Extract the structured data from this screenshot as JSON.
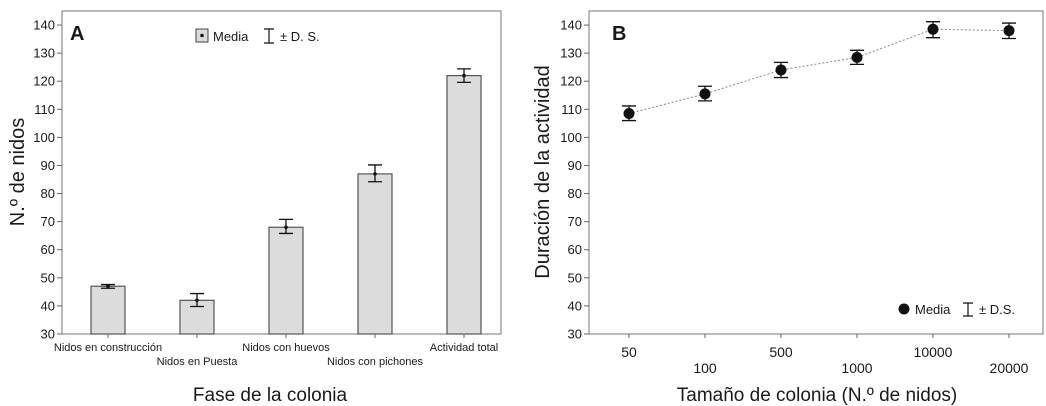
{
  "chart_data": [
    {
      "panel": "A",
      "type": "bar",
      "xlabel": "Fase de la colonia",
      "ylabel": "N.º de nidos",
      "ylim": [
        30,
        145
      ],
      "yticks": [
        30,
        40,
        50,
        60,
        70,
        80,
        90,
        100,
        110,
        120,
        130,
        140
      ],
      "categories": [
        "Nidos en construcción",
        "Nidos en Puesta",
        "Nidos con huevos",
        "Nidos con pichones",
        "Actividad total"
      ],
      "values": [
        47,
        42,
        68,
        87,
        122
      ],
      "error_low": [
        46.3,
        39.8,
        65.8,
        84.2,
        119.6
      ],
      "error_high": [
        47.6,
        44.4,
        70.8,
        90.2,
        124.4
      ],
      "legend": {
        "mean_label": "Media",
        "error_label": "± D. S.",
        "placement": "top-center"
      },
      "grid": false,
      "colors": {
        "bar_fill": "#dcdcdc",
        "bar_stroke": "#555555"
      }
    },
    {
      "panel": "B",
      "type": "scatter",
      "xlabel": "Tamaño de colonia (N.º de nidos)",
      "ylabel": "Duración de la actividad",
      "ylim": [
        30,
        145
      ],
      "yticks": [
        30,
        40,
        50,
        60,
        70,
        80,
        90,
        100,
        110,
        120,
        130,
        140
      ],
      "categories": [
        "50",
        "100",
        "500",
        "1000",
        "10000",
        "20000"
      ],
      "values": [
        108.5,
        115.5,
        124,
        128.5,
        138.5,
        138
      ],
      "error_low": [
        106,
        113,
        121.3,
        126,
        135.5,
        135.2
      ],
      "error_high": [
        111.2,
        118.2,
        126.7,
        131,
        141.2,
        140.7
      ],
      "connected": true,
      "legend": {
        "mean_label": "Media",
        "error_label": "± D.S.",
        "placement": "bottom-right"
      },
      "grid": false,
      "colors": {
        "marker": "#111111",
        "line": "#888888"
      }
    }
  ]
}
